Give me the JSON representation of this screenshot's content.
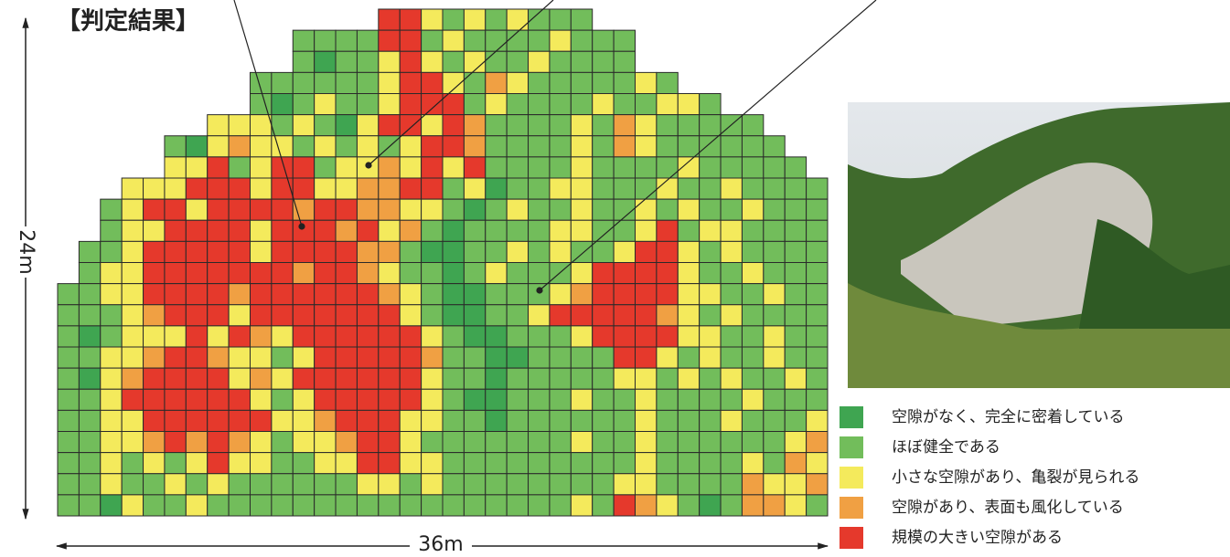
{
  "header": {
    "title": "【判定結果】"
  },
  "dimensions": {
    "height": "24m",
    "width": "36m"
  },
  "legend": [
    {
      "label": "空隙がなく、完全に密着している",
      "color": "#3fa551"
    },
    {
      "label": "ほぼ健全である",
      "color": "#72bd5b"
    },
    {
      "label": "小さな空隙があり、亀裂が見られる",
      "color": "#f4ea5c"
    },
    {
      "label": "空隙があり、表面も風化している",
      "color": "#f0a043"
    },
    {
      "label": "規模の大きい空隙がある",
      "color": "#e5392c"
    }
  ],
  "grid": [
    [
      null,
      null,
      null,
      null,
      null,
      null,
      null,
      null,
      null,
      null,
      null,
      null,
      null,
      null,
      null,
      4,
      4,
      2,
      1,
      2,
      1,
      2,
      1,
      1,
      1,
      null,
      null,
      null,
      null,
      null,
      null,
      null,
      null,
      null,
      null,
      null
    ],
    [
      null,
      null,
      null,
      null,
      null,
      null,
      null,
      null,
      null,
      null,
      null,
      1,
      1,
      1,
      1,
      4,
      4,
      1,
      2,
      1,
      1,
      1,
      1,
      2,
      1,
      1,
      1,
      null,
      null,
      null,
      null,
      null,
      null,
      null,
      null,
      null
    ],
    [
      null,
      null,
      null,
      null,
      null,
      null,
      null,
      null,
      null,
      null,
      null,
      1,
      0,
      1,
      1,
      2,
      4,
      2,
      1,
      2,
      1,
      1,
      2,
      1,
      1,
      1,
      1,
      null,
      null,
      null,
      null,
      null,
      null,
      null,
      null,
      null
    ],
    [
      null,
      null,
      null,
      null,
      null,
      null,
      null,
      null,
      null,
      1,
      1,
      1,
      1,
      1,
      1,
      2,
      4,
      4,
      2,
      1,
      3,
      2,
      1,
      1,
      1,
      1,
      1,
      2,
      1,
      null,
      null,
      null,
      null,
      null,
      null,
      null
    ],
    [
      null,
      null,
      null,
      null,
      null,
      null,
      null,
      null,
      null,
      1,
      0,
      1,
      2,
      1,
      1,
      2,
      4,
      4,
      4,
      1,
      2,
      1,
      1,
      1,
      1,
      2,
      1,
      1,
      2,
      2,
      1,
      null,
      null,
      null,
      null,
      null
    ],
    [
      null,
      null,
      null,
      null,
      null,
      null,
      null,
      2,
      2,
      2,
      1,
      2,
      1,
      0,
      2,
      4,
      4,
      2,
      4,
      3,
      1,
      1,
      1,
      1,
      2,
      1,
      3,
      2,
      1,
      1,
      1,
      1,
      1,
      null,
      null,
      null
    ],
    [
      null,
      null,
      null,
      null,
      null,
      1,
      0,
      2,
      3,
      2,
      2,
      1,
      2,
      1,
      2,
      1,
      2,
      4,
      4,
      3,
      1,
      1,
      1,
      1,
      2,
      1,
      3,
      2,
      1,
      1,
      1,
      1,
      1,
      1,
      null,
      null
    ],
    [
      null,
      null,
      null,
      null,
      null,
      2,
      2,
      4,
      1,
      2,
      4,
      4,
      1,
      2,
      2,
      3,
      2,
      4,
      2,
      4,
      1,
      1,
      1,
      1,
      2,
      1,
      1,
      1,
      1,
      2,
      1,
      1,
      1,
      1,
      1,
      null
    ],
    [
      null,
      null,
      null,
      2,
      2,
      2,
      4,
      4,
      4,
      2,
      4,
      4,
      2,
      2,
      3,
      3,
      4,
      4,
      1,
      2,
      0,
      1,
      1,
      2,
      2,
      1,
      1,
      1,
      2,
      1,
      1,
      2,
      1,
      1,
      1,
      1
    ],
    [
      null,
      null,
      1,
      2,
      4,
      4,
      2,
      4,
      4,
      4,
      4,
      3,
      4,
      4,
      3,
      3,
      2,
      2,
      1,
      0,
      1,
      2,
      1,
      1,
      2,
      1,
      1,
      2,
      1,
      2,
      1,
      1,
      2,
      1,
      1,
      1
    ],
    [
      null,
      null,
      1,
      2,
      2,
      4,
      4,
      4,
      4,
      2,
      4,
      4,
      4,
      3,
      4,
      2,
      3,
      1,
      0,
      1,
      1,
      1,
      1,
      2,
      2,
      1,
      1,
      2,
      4,
      1,
      2,
      2,
      1,
      1,
      1,
      1
    ],
    [
      null,
      1,
      1,
      2,
      4,
      4,
      4,
      4,
      4,
      2,
      4,
      4,
      4,
      4,
      3,
      3,
      1,
      0,
      0,
      1,
      1,
      2,
      1,
      2,
      1,
      1,
      2,
      4,
      4,
      2,
      1,
      2,
      1,
      1,
      1,
      1
    ],
    [
      null,
      1,
      2,
      2,
      4,
      4,
      4,
      4,
      4,
      4,
      4,
      3,
      4,
      4,
      3,
      2,
      1,
      1,
      0,
      1,
      2,
      1,
      1,
      1,
      2,
      4,
      4,
      4,
      4,
      2,
      1,
      1,
      2,
      1,
      1,
      1
    ],
    [
      1,
      1,
      2,
      2,
      4,
      4,
      4,
      4,
      3,
      4,
      4,
      4,
      4,
      4,
      4,
      3,
      2,
      1,
      0,
      0,
      1,
      1,
      1,
      2,
      3,
      4,
      4,
      4,
      4,
      2,
      2,
      1,
      1,
      2,
      1,
      1
    ],
    [
      1,
      1,
      1,
      2,
      3,
      4,
      4,
      4,
      2,
      4,
      4,
      4,
      4,
      4,
      4,
      4,
      2,
      1,
      0,
      0,
      1,
      1,
      2,
      4,
      4,
      4,
      4,
      4,
      3,
      2,
      1,
      2,
      1,
      1,
      1,
      1
    ],
    [
      1,
      0,
      1,
      2,
      2,
      2,
      4,
      2,
      4,
      3,
      2,
      4,
      4,
      4,
      4,
      4,
      4,
      2,
      1,
      0,
      0,
      1,
      1,
      1,
      2,
      4,
      4,
      4,
      4,
      2,
      2,
      1,
      1,
      2,
      1,
      1
    ],
    [
      1,
      1,
      2,
      2,
      3,
      4,
      4,
      3,
      2,
      2,
      1,
      2,
      4,
      4,
      4,
      4,
      4,
      3,
      1,
      1,
      0,
      0,
      1,
      1,
      1,
      1,
      4,
      4,
      2,
      1,
      2,
      1,
      1,
      2,
      1,
      1
    ],
    [
      1,
      0,
      2,
      3,
      4,
      4,
      4,
      4,
      2,
      3,
      2,
      4,
      4,
      4,
      4,
      4,
      4,
      2,
      1,
      1,
      0,
      1,
      1,
      1,
      1,
      1,
      2,
      2,
      1,
      2,
      1,
      2,
      1,
      1,
      2,
      1
    ],
    [
      1,
      1,
      2,
      4,
      4,
      4,
      4,
      4,
      4,
      2,
      1,
      2,
      4,
      4,
      4,
      4,
      4,
      2,
      1,
      0,
      0,
      1,
      1,
      1,
      2,
      1,
      1,
      2,
      1,
      1,
      1,
      1,
      2,
      1,
      1,
      1
    ],
    [
      1,
      1,
      2,
      2,
      4,
      4,
      4,
      4,
      4,
      4,
      2,
      2,
      3,
      4,
      4,
      4,
      2,
      2,
      1,
      1,
      0,
      1,
      1,
      1,
      1,
      1,
      1,
      2,
      1,
      1,
      1,
      2,
      1,
      1,
      1,
      2
    ],
    [
      1,
      1,
      2,
      2,
      3,
      4,
      3,
      4,
      3,
      2,
      1,
      2,
      2,
      3,
      4,
      4,
      2,
      1,
      1,
      1,
      1,
      1,
      1,
      1,
      2,
      1,
      1,
      2,
      1,
      1,
      1,
      1,
      1,
      1,
      2,
      3
    ],
    [
      1,
      1,
      2,
      1,
      2,
      1,
      2,
      4,
      2,
      2,
      1,
      1,
      2,
      2,
      4,
      4,
      2,
      2,
      1,
      1,
      1,
      1,
      1,
      1,
      1,
      1,
      1,
      2,
      1,
      1,
      1,
      1,
      2,
      1,
      3,
      2
    ],
    [
      1,
      1,
      2,
      1,
      1,
      2,
      1,
      2,
      1,
      1,
      1,
      1,
      1,
      1,
      2,
      2,
      1,
      2,
      1,
      1,
      1,
      1,
      1,
      1,
      1,
      1,
      2,
      2,
      1,
      1,
      1,
      1,
      3,
      2,
      2,
      3
    ],
    [
      1,
      1,
      0,
      2,
      1,
      1,
      2,
      1,
      1,
      1,
      1,
      1,
      1,
      1,
      1,
      1,
      1,
      1,
      1,
      1,
      1,
      1,
      1,
      1,
      2,
      1,
      4,
      3,
      2,
      1,
      0,
      1,
      3,
      3,
      2,
      1
    ]
  ]
}
